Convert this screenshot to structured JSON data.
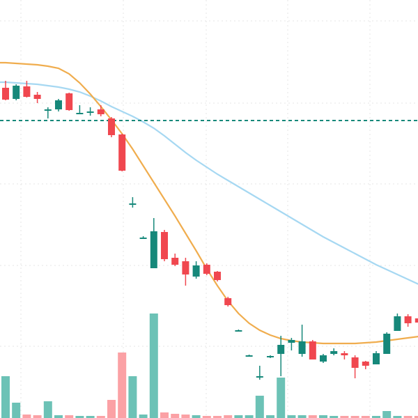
{
  "chart_data": {
    "type": "candlestick",
    "title": "",
    "xlabel": "",
    "ylabel": "",
    "ylim": [
      0,
      600
    ],
    "grid": true,
    "legend": "none",
    "colors": {
      "up": "#16887a",
      "down": "#f0474f",
      "volume_up": "#6cc2b6",
      "volume_down": "#fba1a5",
      "ma_fast": "#f0ad4e",
      "ma_slow": "#a6d8f2",
      "level": "#16887a",
      "grid": "#e6e6e6"
    },
    "candles": [
      {
        "o": 474,
        "h": 484,
        "l": 456,
        "c": 457
      },
      {
        "o": 458,
        "h": 479,
        "l": 456,
        "c": 477
      },
      {
        "o": 476,
        "h": 484,
        "l": 460,
        "c": 461
      },
      {
        "o": 464,
        "h": 468,
        "l": 452,
        "c": 458
      },
      {
        "o": 441,
        "h": 446,
        "l": 430,
        "c": 443
      },
      {
        "o": 443,
        "h": 458,
        "l": 440,
        "c": 456
      },
      {
        "o": 466,
        "h": 467,
        "l": 441,
        "c": 442
      },
      {
        "o": 436,
        "h": 449,
        "l": 436,
        "c": 438
      },
      {
        "o": 438,
        "h": 446,
        "l": 434,
        "c": 440
      },
      {
        "o": 443,
        "h": 449,
        "l": 433,
        "c": 436
      },
      {
        "o": 430,
        "h": 432,
        "l": 403,
        "c": 406
      },
      {
        "o": 407,
        "h": 408,
        "l": 354,
        "c": 355
      },
      {
        "o": 307,
        "h": 317,
        "l": 302,
        "c": 308
      },
      {
        "o": 258,
        "h": 261,
        "l": 258,
        "c": 259
      },
      {
        "o": 215,
        "h": 287,
        "l": 215,
        "c": 268
      },
      {
        "o": 267,
        "h": 270,
        "l": 225,
        "c": 228
      },
      {
        "o": 230,
        "h": 236,
        "l": 218,
        "c": 220
      },
      {
        "o": 225,
        "h": 230,
        "l": 190,
        "c": 206
      },
      {
        "o": 203,
        "h": 225,
        "l": 200,
        "c": 219
      },
      {
        "o": 220,
        "h": 222,
        "l": 205,
        "c": 207
      },
      {
        "o": 210,
        "h": 211,
        "l": 196,
        "c": 198
      },
      {
        "o": 172,
        "h": 174,
        "l": 160,
        "c": 162
      },
      {
        "o": 125,
        "h": 127,
        "l": 124,
        "c": 126
      },
      {
        "o": 90,
        "h": 91,
        "l": 89,
        "c": 90
      },
      {
        "o": 58,
        "h": 75,
        "l": 55,
        "c": 60
      },
      {
        "o": 88,
        "h": 90,
        "l": 86,
        "c": 89
      },
      {
        "o": 92,
        "h": 118,
        "l": 60,
        "c": 105
      },
      {
        "o": 108,
        "h": 115,
        "l": 97,
        "c": 112
      },
      {
        "o": 92,
        "h": 134,
        "l": 88,
        "c": 110
      },
      {
        "o": 110,
        "h": 112,
        "l": 84,
        "c": 84
      },
      {
        "o": 81,
        "h": 92,
        "l": 79,
        "c": 90
      },
      {
        "o": 92,
        "h": 100,
        "l": 90,
        "c": 96
      },
      {
        "o": 93,
        "h": 96,
        "l": 84,
        "c": 90
      },
      {
        "o": 87,
        "h": 90,
        "l": 57,
        "c": 72
      },
      {
        "o": 81,
        "h": 82,
        "l": 70,
        "c": 75
      },
      {
        "o": 77,
        "h": 96,
        "l": 77,
        "c": 93
      },
      {
        "o": 92,
        "h": 123,
        "l": 92,
        "c": 121
      },
      {
        "o": 125,
        "h": 150,
        "l": 125,
        "c": 146
      },
      {
        "o": 146,
        "h": 149,
        "l": 131,
        "c": 136
      },
      {
        "o": 143,
        "h": 160,
        "l": 135,
        "c": 137
      }
    ],
    "volume": [
      {
        "v": 60,
        "dir": "up"
      },
      {
        "v": 22,
        "dir": "up"
      },
      {
        "v": 5,
        "dir": "down"
      },
      {
        "v": 4,
        "dir": "down"
      },
      {
        "v": 24,
        "dir": "up"
      },
      {
        "v": 4,
        "dir": "up"
      },
      {
        "v": 4,
        "dir": "down"
      },
      {
        "v": 3,
        "dir": "up"
      },
      {
        "v": 3,
        "dir": "up"
      },
      {
        "v": 3,
        "dir": "down"
      },
      {
        "v": 26,
        "dir": "down"
      },
      {
        "v": 94,
        "dir": "down"
      },
      {
        "v": 60,
        "dir": "up"
      },
      {
        "v": 5,
        "dir": "up"
      },
      {
        "v": 150,
        "dir": "up"
      },
      {
        "v": 8,
        "dir": "down"
      },
      {
        "v": 6,
        "dir": "down"
      },
      {
        "v": 5,
        "dir": "down"
      },
      {
        "v": 4,
        "dir": "up"
      },
      {
        "v": 3,
        "dir": "down"
      },
      {
        "v": 3,
        "dir": "down"
      },
      {
        "v": 4,
        "dir": "down"
      },
      {
        "v": 4,
        "dir": "up"
      },
      {
        "v": 4,
        "dir": "up"
      },
      {
        "v": 32,
        "dir": "up"
      },
      {
        "v": 4,
        "dir": "up"
      },
      {
        "v": 58,
        "dir": "up"
      },
      {
        "v": 4,
        "dir": "up"
      },
      {
        "v": 4,
        "dir": "up"
      },
      {
        "v": 4,
        "dir": "down"
      },
      {
        "v": 4,
        "dir": "up"
      },
      {
        "v": 3,
        "dir": "up"
      },
      {
        "v": 3,
        "dir": "down"
      },
      {
        "v": 3,
        "dir": "down"
      },
      {
        "v": 3,
        "dir": "down"
      },
      {
        "v": 3,
        "dir": "up"
      },
      {
        "v": 10,
        "dir": "up"
      },
      {
        "v": 3,
        "dir": "up"
      },
      {
        "v": 3,
        "dir": "down"
      },
      {
        "v": 3,
        "dir": "down"
      }
    ],
    "ma_fast": [
      510,
      509,
      508,
      507,
      505,
      502,
      494,
      481,
      465,
      447,
      428,
      408,
      386,
      362,
      338,
      314,
      290,
      265,
      240,
      214,
      190,
      168,
      150,
      136,
      126,
      119,
      114,
      111,
      109,
      108,
      107,
      107,
      107,
      107,
      108,
      109,
      111,
      113,
      115,
      117
    ],
    "ma_slow": [
      482,
      481,
      480,
      479,
      477,
      475,
      472,
      468,
      462,
      455,
      447,
      440,
      433,
      425,
      416,
      405,
      393,
      381,
      370,
      360,
      350,
      341,
      332,
      323,
      314,
      305,
      296,
      287,
      278,
      269,
      260,
      252,
      244,
      236,
      228,
      220,
      213,
      206,
      199,
      192
    ],
    "level": 427
  }
}
